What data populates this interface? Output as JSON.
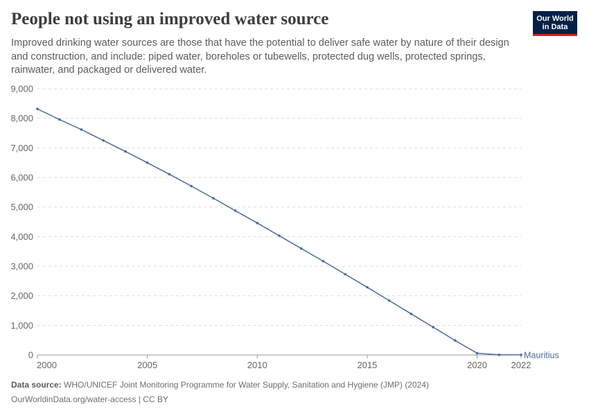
{
  "header": {
    "title": "People not using an improved water source",
    "subtitle": "Improved drinking water sources are those that have the potential to deliver safe water by nature of their design and construction, and include: piped water, boreholes or tubewells, protected dug wells, protected springs, rainwater, and packaged or delivered water."
  },
  "logo": {
    "line1": "Our World",
    "line2": "in Data"
  },
  "footer": {
    "source_label": "Data source:",
    "source_text": "WHO/UNICEF Joint Monitoring Programme for Water Supply, Sanitation and Hygiene (JMP) (2024)",
    "url_license": "OurWorldinData.org/water-access | CC BY"
  },
  "colors": {
    "series": "#4c6a9c",
    "grid": "#dddddd",
    "axis": "#999999",
    "logo_bg": "#002147",
    "logo_accent": "#ce261e"
  },
  "chart_data": {
    "type": "line",
    "x": [
      2000,
      2001,
      2002,
      2003,
      2004,
      2005,
      2006,
      2007,
      2008,
      2009,
      2010,
      2011,
      2012,
      2013,
      2014,
      2015,
      2016,
      2017,
      2018,
      2019,
      2020,
      2021,
      2022
    ],
    "series": [
      {
        "name": "Mauritius",
        "values": [
          8320,
          7960,
          7620,
          7250,
          6880,
          6500,
          6110,
          5710,
          5300,
          4880,
          4460,
          4030,
          3600,
          3170,
          2730,
          2290,
          1840,
          1390,
          940,
          490,
          60,
          5,
          5
        ]
      }
    ],
    "xticks": [
      2000,
      2005,
      2010,
      2015,
      2020,
      2022
    ],
    "yticks": [
      0,
      1000,
      2000,
      3000,
      4000,
      5000,
      6000,
      7000,
      8000,
      9000
    ],
    "ytick_labels": [
      "0",
      "1,000",
      "2,000",
      "3,000",
      "4,000",
      "5,000",
      "6,000",
      "7,000",
      "8,000",
      "9,000"
    ],
    "xlim": [
      2000,
      2022
    ],
    "ylim": [
      0,
      9000
    ],
    "grid": "horizontal dashed",
    "legend": "inline label at line end"
  }
}
